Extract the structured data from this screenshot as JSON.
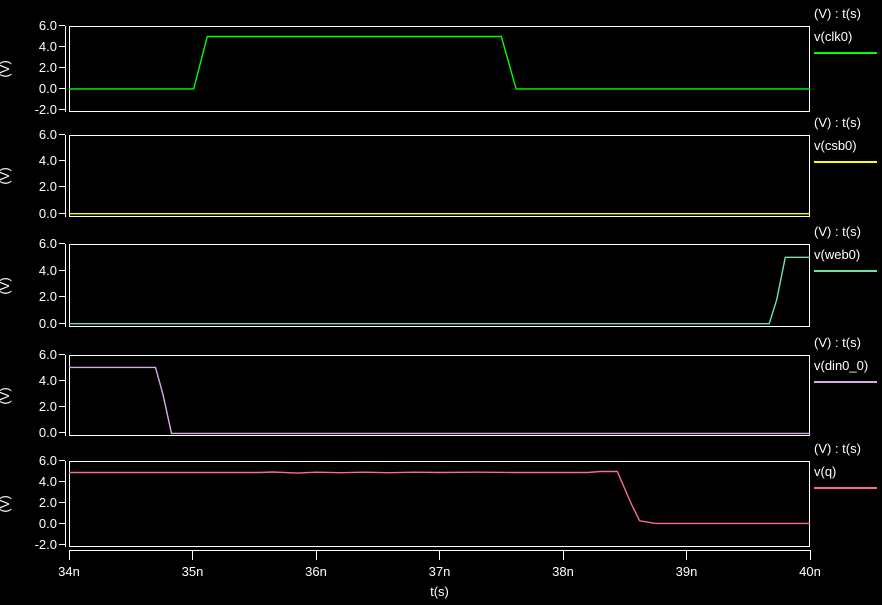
{
  "window": {
    "background": "#000000",
    "text_color": "#ffffff"
  },
  "xaxis": {
    "label": "t(s)",
    "range_ns": [
      34,
      40
    ],
    "ticks": [
      {
        "value": 34,
        "label": "34n"
      },
      {
        "value": 35,
        "label": "35n"
      },
      {
        "value": 36,
        "label": "36n"
      },
      {
        "value": 37,
        "label": "37n"
      },
      {
        "value": 38,
        "label": "38n"
      },
      {
        "value": 39,
        "label": "39n"
      },
      {
        "value": 40,
        "label": "40n"
      }
    ]
  },
  "panels": [
    {
      "header": "(V) : t(s)",
      "ylabel": "(V)",
      "signal": "v(clk0)"
    },
    {
      "header": "(V) : t(s)",
      "ylabel": "(V)",
      "signal": "v(csb0)"
    },
    {
      "header": "(V) : t(s)",
      "ylabel": "(V)",
      "signal": "v(web0)"
    },
    {
      "header": "(V) : t(s)",
      "ylabel": "(V)",
      "signal": "v(din0_0)"
    },
    {
      "header": "(V) : t(s)",
      "ylabel": "(V)",
      "signal": "v(q)"
    }
  ],
  "chart_data": [
    {
      "type": "line",
      "name": "v(clk0)",
      "color": "#00ff00",
      "xlabel": "t(s)",
      "ylabel": "(V)",
      "xlim_ns": [
        34,
        40
      ],
      "ylim": [
        -2.2,
        6.0
      ],
      "ytick_values": [
        6.0,
        4.0,
        2.0,
        0.0,
        -2.0
      ],
      "ytick_labels": [
        "6.0",
        "4.0",
        "2.0",
        "0.0",
        "-2.0"
      ],
      "points_t_ns_v": [
        [
          34.0,
          0.0
        ],
        [
          35.01,
          0.0
        ],
        [
          35.12,
          5.0
        ],
        [
          37.5,
          5.0
        ],
        [
          37.62,
          0.0
        ],
        [
          40.0,
          0.0
        ]
      ]
    },
    {
      "type": "line",
      "name": "v(csb0)",
      "color": "#ffff00",
      "xlabel": "t(s)",
      "ylabel": "(V)",
      "xlim_ns": [
        34,
        40
      ],
      "ylim": [
        -0.25,
        6.0
      ],
      "ytick_values": [
        6.0,
        4.0,
        2.0,
        0.0
      ],
      "ytick_labels": [
        "6.0",
        "4.0",
        "2.0",
        "0.0"
      ],
      "points_t_ns_v": [
        [
          34.0,
          0.0
        ],
        [
          40.0,
          0.0
        ]
      ]
    },
    {
      "type": "line",
      "name": "v(web0)",
      "color": "#70e2a8",
      "xlabel": "t(s)",
      "ylabel": "(V)",
      "xlim_ns": [
        34,
        40
      ],
      "ylim": [
        -0.25,
        6.0
      ],
      "ytick_values": [
        6.0,
        4.0,
        2.0,
        0.0
      ],
      "ytick_labels": [
        "6.0",
        "4.0",
        "2.0",
        "0.0"
      ],
      "points_t_ns_v": [
        [
          34.0,
          0.0
        ],
        [
          39.67,
          0.0
        ],
        [
          39.73,
          1.8
        ],
        [
          39.8,
          5.0
        ],
        [
          40.0,
          5.0
        ]
      ]
    },
    {
      "type": "line",
      "name": "v(din0_0)",
      "color": "#d6aee6",
      "xlabel": "t(s)",
      "ylabel": "(V)",
      "xlim_ns": [
        34,
        40
      ],
      "ylim": [
        -0.2,
        6.0
      ],
      "ytick_values": [
        6.0,
        4.0,
        2.0,
        0.0
      ],
      "ytick_labels": [
        "6.0",
        "4.0",
        "2.0",
        "0.0"
      ],
      "points_t_ns_v": [
        [
          34.0,
          5.05
        ],
        [
          34.7,
          5.05
        ],
        [
          34.76,
          3.0
        ],
        [
          34.83,
          0.0
        ],
        [
          40.0,
          0.0
        ]
      ]
    },
    {
      "type": "line",
      "name": "v(q)",
      "color": "#ff6699",
      "xlabel": "t(s)",
      "ylabel": "(V)",
      "xlim_ns": [
        34,
        40
      ],
      "ylim": [
        -2.2,
        6.0
      ],
      "ytick_values": [
        6.0,
        4.0,
        2.0,
        0.0,
        -2.0
      ],
      "ytick_labels": [
        "6.0",
        "4.0",
        "2.0",
        "0.0",
        "-2.0"
      ],
      "points_t_ns_v": [
        [
          34.0,
          4.9
        ],
        [
          35.55,
          4.9
        ],
        [
          35.65,
          4.95
        ],
        [
          35.85,
          4.85
        ],
        [
          36.0,
          4.93
        ],
        [
          36.2,
          4.88
        ],
        [
          36.4,
          4.93
        ],
        [
          36.6,
          4.88
        ],
        [
          36.8,
          4.93
        ],
        [
          37.0,
          4.9
        ],
        [
          37.3,
          4.93
        ],
        [
          37.6,
          4.9
        ],
        [
          38.2,
          4.9
        ],
        [
          38.3,
          5.0
        ],
        [
          38.44,
          5.0
        ],
        [
          38.55,
          2.0
        ],
        [
          38.62,
          0.3
        ],
        [
          38.75,
          0.05
        ],
        [
          40.0,
          0.05
        ]
      ]
    }
  ]
}
